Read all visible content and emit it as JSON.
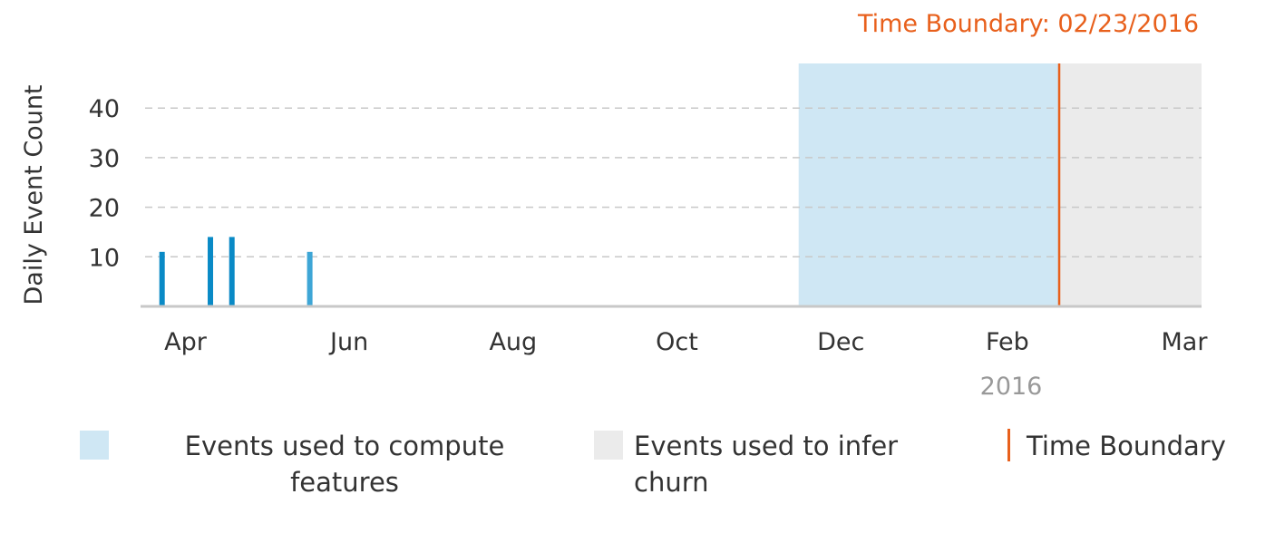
{
  "chart_data": {
    "type": "bar",
    "ylabel": "Daily Event Count",
    "xlabel": "",
    "y_ticks": [
      10,
      20,
      30,
      40
    ],
    "ylim": [
      0,
      49
    ],
    "xlim": [
      "2015-03-18",
      "2016-04-16"
    ],
    "grid": "horizontal-dashed",
    "x_ticks": [
      {
        "label": "Apr",
        "date": "2015-04-01"
      },
      {
        "label": "Jun",
        "date": "2015-06-01"
      },
      {
        "label": "Aug",
        "date": "2015-08-01"
      },
      {
        "label": "Oct",
        "date": "2015-10-01"
      },
      {
        "label": "Dec",
        "date": "2015-12-01"
      },
      {
        "label": "Feb",
        "date": "2016-02-01"
      },
      {
        "label": "Mar",
        "date": "2016-03-01"
      }
    ],
    "year_label": "2016",
    "bars": [
      {
        "date": "2015-03-26",
        "value": 11,
        "color": "#0a8ac6"
      },
      {
        "date": "2015-04-13",
        "value": 14,
        "color": "#0a8ac6"
      },
      {
        "date": "2015-04-21",
        "value": 14,
        "color": "#0a8ac6"
      },
      {
        "date": "2015-05-20",
        "value": 11,
        "color": "#3ea6d6"
      }
    ],
    "feature_region": {
      "start": "2015-11-18",
      "end": "2016-02-23",
      "color": "#cfe7f4"
    },
    "churn_region": {
      "start": "2016-02-23",
      "end": "2016-04-16",
      "color": "#ebebeb"
    },
    "boundary": {
      "date": "2016-02-23",
      "label": "Time Boundary: 02/23/2016",
      "color": "#e8601c"
    },
    "legend": [
      {
        "label": "Events used to compute features",
        "color": "#cfe7f4"
      },
      {
        "label": "Events used to infer churn",
        "color": "#ebebeb"
      },
      {
        "label": "Time Boundary",
        "color": "#e8601c"
      }
    ],
    "legend_placement": "bottom"
  }
}
